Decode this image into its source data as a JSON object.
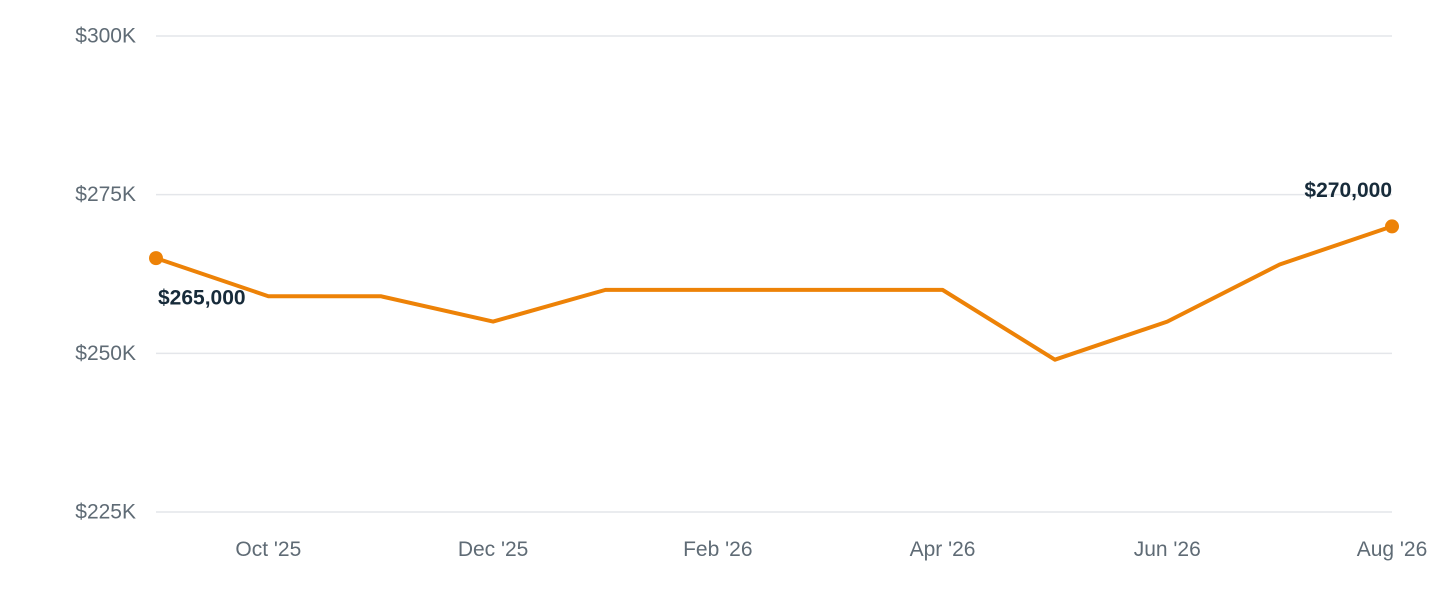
{
  "chart_data": {
    "type": "line",
    "title": "",
    "xlabel": "",
    "ylabel": "",
    "x": [
      "Sep '25",
      "Oct '25",
      "Nov '25",
      "Dec '25",
      "Jan '26",
      "Feb '26",
      "Mar '26",
      "Apr '26",
      "May '26",
      "Jun '26",
      "Jul '26",
      "Aug '26"
    ],
    "x_tick_labels": [
      "Oct '25",
      "Dec '25",
      "Feb '26",
      "Apr '26",
      "Jun '26",
      "Aug '26"
    ],
    "series": [
      {
        "values": [
          265000,
          259000,
          259000,
          255000,
          260000,
          260000,
          260000,
          260000,
          249000,
          255000,
          264000,
          270000
        ],
        "color": "#ed8207"
      }
    ],
    "ylim": [
      225000,
      300000
    ],
    "y_ticks": [
      225000,
      250000,
      275000,
      300000
    ],
    "y_tick_labels": [
      "$225K",
      "$250K",
      "$275K",
      "$300K"
    ],
    "data_labels": [
      {
        "x": "Sep '25",
        "text": "$265,000"
      },
      {
        "x": "Aug '26",
        "text": "$270,000"
      }
    ],
    "grid": true,
    "legend": "none"
  }
}
